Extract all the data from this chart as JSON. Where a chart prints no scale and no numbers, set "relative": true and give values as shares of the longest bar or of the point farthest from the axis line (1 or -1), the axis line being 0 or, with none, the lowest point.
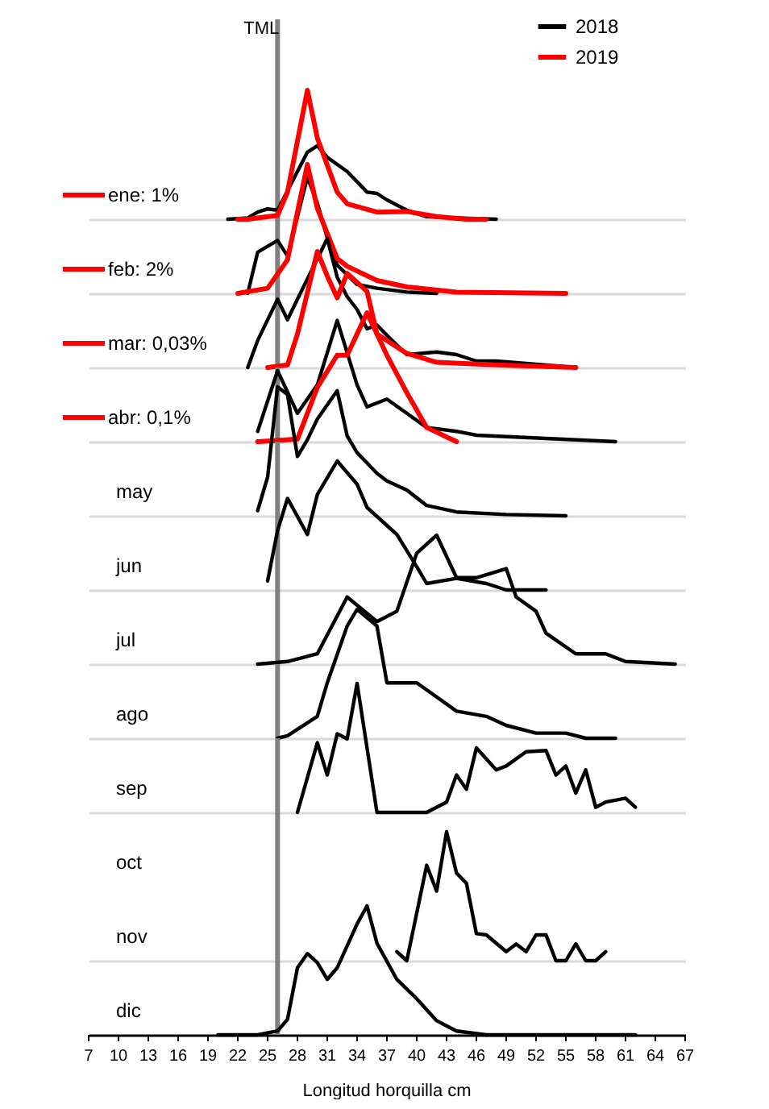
{
  "chart_data": [
    {
      "type": "line",
      "relative": true,
      "title": "ene: 1%",
      "xlim": [
        7,
        67
      ],
      "tick_labels": false,
      "legend": "top right",
      "ref_lines": [
        {
          "axis": "x",
          "value": 26,
          "label": "TML",
          "color": "#808080"
        }
      ],
      "series": [
        {
          "name": "2018",
          "color": "#000000",
          "x": [
            21,
            23,
            24,
            25,
            26,
            29,
            30,
            31,
            33,
            35,
            36,
            37,
            39,
            41,
            44,
            48
          ],
          "values": [
            0,
            0.01,
            0.055,
            0.08,
            0.07,
            0.52,
            0.57,
            0.48,
            0.37,
            0.21,
            0.2,
            0.15,
            0.07,
            0.02,
            0.01,
            0
          ]
        },
        {
          "name": "2019",
          "color": "#ff0000",
          "x": [
            22,
            23,
            26,
            27,
            29,
            30,
            32,
            33,
            36,
            39,
            42,
            45,
            47
          ],
          "values": [
            0,
            0,
            0.03,
            0.21,
            1,
            0.63,
            0.21,
            0.12,
            0.055,
            0.06,
            0.02,
            0,
            0
          ]
        }
      ]
    },
    {
      "type": "line",
      "relative": true,
      "title": "feb: 2%",
      "xlim": [
        7,
        67
      ],
      "tick_labels": false,
      "ref_lines": [
        {
          "axis": "x",
          "value": 26,
          "color": "#808080"
        }
      ],
      "series": [
        {
          "color": "#000000",
          "x": [
            23,
            24,
            26,
            27,
            29,
            30,
            31,
            32,
            34,
            36,
            39,
            42
          ],
          "values": [
            0,
            0.32,
            0.41,
            0.29,
            0.9,
            0.7,
            0.43,
            0.22,
            0.07,
            0.04,
            0.01,
            0
          ]
        },
        {
          "color": "#ff0000",
          "x": [
            22,
            25,
            27,
            29,
            30,
            32,
            33,
            36,
            39,
            44,
            55
          ],
          "values": [
            0,
            0.04,
            0.26,
            1,
            0.66,
            0.27,
            0.21,
            0.1,
            0.05,
            0.01,
            0
          ]
        }
      ]
    },
    {
      "type": "line",
      "relative": true,
      "title": "mar: 0,03%",
      "xlim": [
        7,
        67
      ],
      "tick_labels": false,
      "ref_lines": [
        {
          "axis": "x",
          "value": 26,
          "color": "#808080"
        }
      ],
      "series": [
        {
          "color": "#000000",
          "x": [
            23,
            24,
            26,
            27,
            28,
            31,
            32,
            33,
            34,
            35,
            36,
            37,
            39,
            42,
            44,
            46,
            48,
            56
          ],
          "values": [
            0,
            0.21,
            0.53,
            0.37,
            0.53,
            1,
            0.7,
            0.55,
            0.45,
            0.3,
            0.33,
            0.25,
            0.1,
            0.12,
            0.1,
            0.05,
            0.05,
            0
          ]
        },
        {
          "color": "#ff0000",
          "x": [
            25,
            27,
            28,
            30,
            31,
            32,
            33,
            35,
            36,
            39,
            42,
            48,
            56
          ],
          "values": [
            0,
            0.02,
            0.26,
            0.9,
            0.71,
            0.54,
            0.73,
            0.59,
            0.26,
            0.11,
            0.04,
            0.02,
            0
          ]
        }
      ]
    },
    {
      "type": "line",
      "relative": true,
      "title": "abr: 0,1%",
      "xlim": [
        7,
        67
      ],
      "tick_labels": false,
      "ref_lines": [
        {
          "axis": "x",
          "value": 26,
          "color": "#808080"
        }
      ],
      "series": [
        {
          "color": "#000000",
          "x": [
            24,
            26,
            28,
            30,
            32,
            34,
            35,
            37,
            39,
            41,
            44,
            46,
            60
          ],
          "values": [
            0.08,
            0.55,
            0.22,
            0.44,
            0.94,
            0.44,
            0.27,
            0.33,
            0.22,
            0.11,
            0.08,
            0.05,
            0
          ]
        },
        {
          "color": "#ff0000",
          "x": [
            24,
            26,
            28,
            30,
            32,
            33,
            35,
            37,
            39,
            41,
            44
          ],
          "values": [
            0,
            0.01,
            0.02,
            0.42,
            0.67,
            0.67,
            1,
            0.67,
            0.38,
            0.11,
            0
          ]
        }
      ]
    },
    {
      "type": "line",
      "relative": true,
      "title": "may",
      "xlim": [
        7,
        67
      ],
      "tick_labels": false,
      "ref_lines": [
        {
          "axis": "x",
          "value": 26,
          "color": "#808080"
        }
      ],
      "series": [
        {
          "color": "#000000",
          "x": [
            24,
            25,
            26,
            27,
            28,
            29,
            30,
            32,
            33,
            34,
            36,
            37,
            39,
            41,
            44,
            49,
            55
          ],
          "values": [
            0.04,
            0.3,
            1,
            0.94,
            0.46,
            0.59,
            0.75,
            0.97,
            0.62,
            0.49,
            0.33,
            0.27,
            0.2,
            0.08,
            0.03,
            0.01,
            0
          ]
        }
      ]
    },
    {
      "type": "line",
      "relative": true,
      "title": "jun",
      "xlim": [
        7,
        67
      ],
      "tick_labels": false,
      "ref_lines": [
        {
          "axis": "x",
          "value": 26,
          "color": "#808080"
        }
      ],
      "series": [
        {
          "color": "#000000",
          "x": [
            25,
            26,
            27,
            29,
            30,
            32,
            34,
            35,
            37,
            38,
            40,
            41,
            44,
            47,
            49,
            53
          ],
          "values": [
            0.07,
            0.46,
            0.71,
            0.43,
            0.74,
            1,
            0.82,
            0.64,
            0.5,
            0.43,
            0.18,
            0.05,
            0.09,
            0.05,
            0,
            0
          ]
        }
      ]
    },
    {
      "type": "line",
      "relative": true,
      "title": "jul",
      "xlim": [
        7,
        67
      ],
      "tick_labels": false,
      "ref_lines": [
        {
          "axis": "x",
          "value": 26,
          "color": "#808080"
        }
      ],
      "series": [
        {
          "color": "#000000",
          "x": [
            24,
            27,
            30,
            33,
            36,
            38,
            40,
            42,
            44,
            46,
            49,
            50,
            52,
            53,
            56,
            59,
            61,
            66
          ],
          "values": [
            0,
            0.02,
            0.08,
            0.52,
            0.33,
            0.41,
            0.86,
            1,
            0.67,
            0.67,
            0.74,
            0.52,
            0.41,
            0.24,
            0.08,
            0.08,
            0.02,
            0
          ]
        }
      ]
    },
    {
      "type": "line",
      "relative": true,
      "title": "ago",
      "xlim": [
        7,
        67
      ],
      "tick_labels": false,
      "ref_lines": [
        {
          "axis": "x",
          "value": 26,
          "color": "#808080"
        }
      ],
      "series": [
        {
          "color": "#000000",
          "x": [
            26,
            27,
            30,
            31,
            33,
            34,
            36,
            37,
            40,
            42,
            44,
            47,
            49,
            52,
            55,
            57,
            60
          ],
          "values": [
            0,
            0.02,
            0.17,
            0.43,
            0.87,
            1,
            0.87,
            0.43,
            0.43,
            0.32,
            0.21,
            0.17,
            0.1,
            0.04,
            0.04,
            0,
            0
          ]
        }
      ]
    },
    {
      "type": "line",
      "relative": true,
      "title": "sep",
      "xlim": [
        7,
        67
      ],
      "tick_labels": false,
      "ref_lines": [
        {
          "axis": "x",
          "value": 26,
          "color": "#808080"
        }
      ],
      "series": [
        {
          "color": "#000000",
          "x": [
            28,
            30,
            31,
            32,
            33,
            34,
            36,
            41,
            43,
            44,
            45,
            46,
            48,
            49,
            51,
            53,
            54,
            55,
            56,
            57,
            58,
            59,
            61,
            62
          ],
          "values": [
            0,
            0.54,
            0.29,
            0.61,
            0.57,
            1,
            0,
            0,
            0.08,
            0.29,
            0.18,
            0.5,
            0.33,
            0.36,
            0.47,
            0.48,
            0.29,
            0.36,
            0.15,
            0.33,
            0.04,
            0.08,
            0.11,
            0.04
          ]
        }
      ]
    },
    {
      "type": "other",
      "title": "oct"
    },
    {
      "type": "line",
      "relative": true,
      "title": "nov",
      "xlim": [
        7,
        67
      ],
      "tick_labels": false,
      "ref_lines": [
        {
          "axis": "x",
          "value": 26,
          "color": "#808080"
        }
      ],
      "series": [
        {
          "color": "#000000",
          "x": [
            38,
            39,
            41,
            42,
            43,
            44,
            45,
            46,
            47,
            49,
            50,
            51,
            52,
            53,
            54,
            55,
            56,
            57,
            58,
            59
          ],
          "values": [
            0.07,
            0,
            0.74,
            0.54,
            1,
            0.68,
            0.6,
            0.21,
            0.2,
            0.07,
            0.13,
            0.07,
            0.2,
            0.2,
            0,
            0,
            0.13,
            0,
            0,
            0.07
          ]
        }
      ]
    },
    {
      "type": "line",
      "relative": true,
      "title": "dic",
      "xlim": [
        7,
        67
      ],
      "xlabel": "Longitud horquilla cm",
      "xticks": [
        7,
        10,
        13,
        16,
        19,
        22,
        25,
        28,
        31,
        34,
        37,
        40,
        43,
        46,
        49,
        52,
        55,
        58,
        61,
        64,
        67
      ],
      "ref_lines": [
        {
          "axis": "x",
          "value": 26,
          "color": "#808080"
        }
      ],
      "series": [
        {
          "color": "#000000",
          "x": [
            20,
            24,
            26,
            27,
            28,
            29,
            30,
            31,
            32,
            34,
            35,
            36,
            38,
            40,
            42,
            44,
            47,
            62
          ],
          "values": [
            0,
            0,
            0.03,
            0.12,
            0.52,
            0.63,
            0.56,
            0.43,
            0.52,
            0.86,
            1,
            0.71,
            0.43,
            0.28,
            0.11,
            0.03,
            0,
            0
          ]
        }
      ]
    }
  ]
}
